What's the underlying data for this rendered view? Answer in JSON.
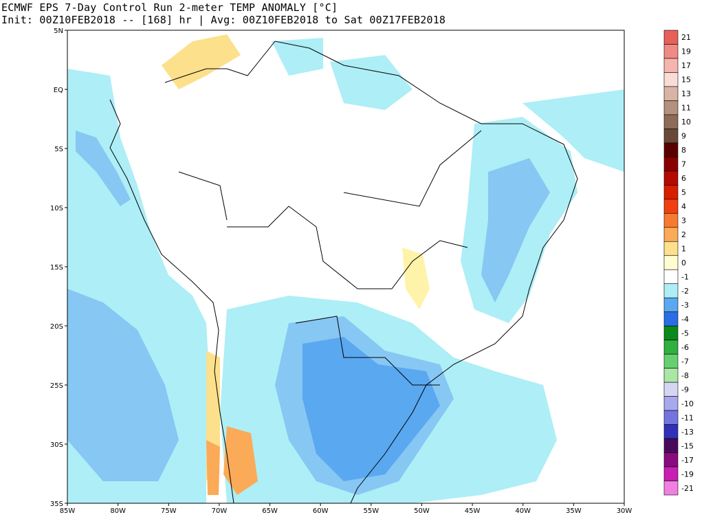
{
  "title": {
    "line1": "ECMWF EPS 7-Day Control Run 2-meter TEMP ANOMALY [°C]",
    "line2": "Init: 00Z10FEB2018 -- [168] hr | Avg: 00Z10FEB2018 to Sat 00Z17FEB2018"
  },
  "map": {
    "lon_range": [
      -85,
      -30
    ],
    "lat_range": [
      -35,
      5
    ],
    "x_ticks": [
      "85W",
      "80W",
      "75W",
      "70W",
      "65W",
      "60W",
      "55W",
      "50W",
      "45W",
      "40W",
      "35W",
      "30W"
    ],
    "y_ticks": [
      "5N",
      "EQ",
      "5S",
      "10S",
      "15S",
      "20S",
      "25S",
      "30S",
      "35S"
    ]
  },
  "colorbar": {
    "levels": [
      {
        "label": "21",
        "color": "#e8605a"
      },
      {
        "label": "19",
        "color": "#f08a84"
      },
      {
        "label": "17",
        "color": "#f6b4ae"
      },
      {
        "label": "15",
        "color": "#fadcd6"
      },
      {
        "label": "13",
        "color": "#d8b4a6"
      },
      {
        "label": "11",
        "color": "#b4907e"
      },
      {
        "label": "10",
        "color": "#8e6a58"
      },
      {
        "label": "9",
        "color": "#6a4838"
      },
      {
        "label": "8",
        "color": "#5a0000"
      },
      {
        "label": "7",
        "color": "#8a0000"
      },
      {
        "label": "6",
        "color": "#b40a00"
      },
      {
        "label": "5",
        "color": "#d82000"
      },
      {
        "label": "4",
        "color": "#f04010"
      },
      {
        "label": "3",
        "color": "#f87a30"
      },
      {
        "label": "2",
        "color": "#fbaa58"
      },
      {
        "label": "1",
        "color": "#fde08c"
      },
      {
        "label": "0",
        "color": "#fefcd0"
      },
      {
        "label": "-1",
        "color": "#ffffff"
      },
      {
        "label": "-2",
        "color": "#aeeef6"
      },
      {
        "label": "-3",
        "color": "#5aa8f0"
      },
      {
        "label": "-4",
        "color": "#2a6ee6"
      },
      {
        "label": "-5",
        "color": "#0a8a1c"
      },
      {
        "label": "-6",
        "color": "#30b040"
      },
      {
        "label": "-7",
        "color": "#66d070"
      },
      {
        "label": "-8",
        "color": "#a8e8a4"
      },
      {
        "label": "-9",
        "color": "#d6d6f4"
      },
      {
        "label": "-10",
        "color": "#a8a8ee"
      },
      {
        "label": "-11",
        "color": "#7474e0"
      },
      {
        "label": "-13",
        "color": "#3030b8"
      },
      {
        "label": "-15",
        "color": "#4a0a5a"
      },
      {
        "label": "-17",
        "color": "#8a0a80"
      },
      {
        "label": "-19",
        "color": "#c820b0"
      },
      {
        "label": "-21",
        "color": "#f080e0"
      }
    ]
  }
}
